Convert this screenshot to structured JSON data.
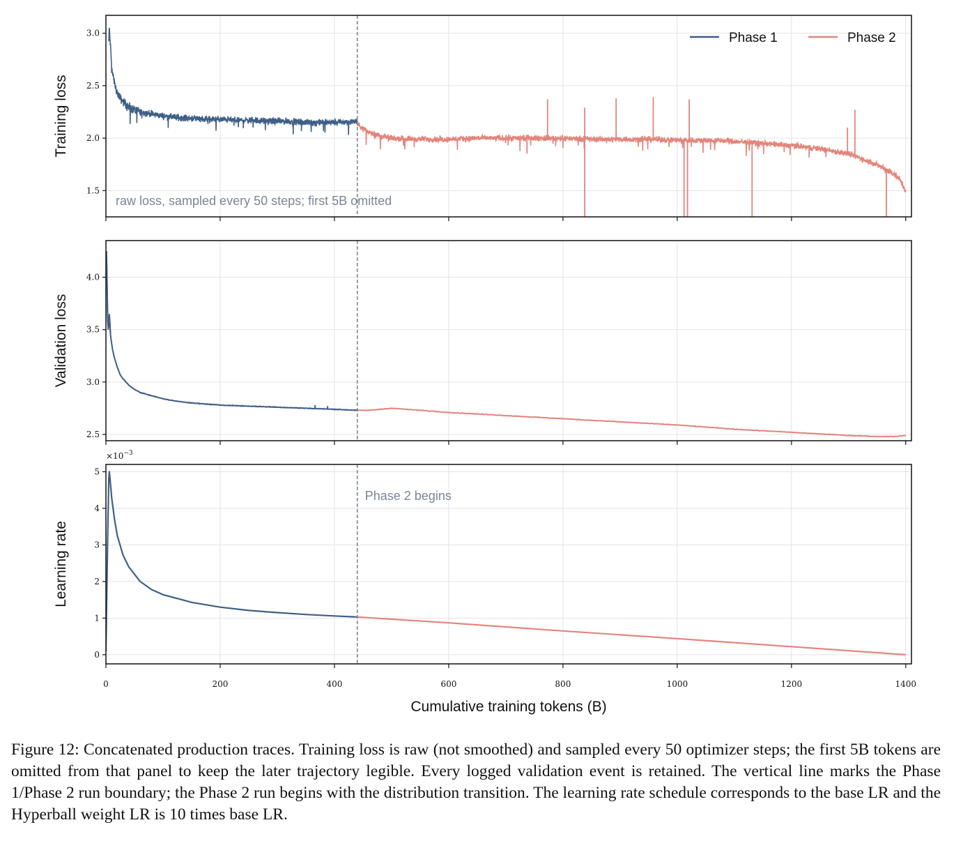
{
  "caption": "Figure 12: Concatenated production traces. Training loss is raw (not smoothed) and sampled every 50 optimizer steps; the first 5B tokens are omitted from that panel to keep the later trajectory legible. Every logged validation event is retained. The vertical line marks the Phase 1/Phase 2 run boundary; the Phase 2 run begins with the distribution transition. The learning rate schedule corresponds to the base LR and the Hyperball weight LR is 10 times base LR.",
  "colors": {
    "phase1": "#3f5f86",
    "phase2": "#e2857c",
    "boundary": "#7b8596",
    "grid": "#e3e3e3",
    "annotation": "#7b8596"
  },
  "chart_data": [
    {
      "type": "line",
      "panel": "training-loss",
      "ylabel": "Training loss",
      "xlim": [
        0,
        1410
      ],
      "ylim": [
        1.25,
        3.17
      ],
      "yticks": [
        1.5,
        2.0,
        2.5,
        3.0
      ],
      "ytick_labels": [
        "1.5",
        "2.0",
        "2.5",
        "3.0"
      ],
      "grid": true,
      "legend_position": "top-right",
      "annotation": "raw loss, sampled every 50 steps; first 5B omitted",
      "series": [
        {
          "name": "Phase 1",
          "x": [
            5,
            6,
            7,
            8,
            9,
            10,
            12,
            14,
            16,
            18,
            20,
            25,
            30,
            35,
            40,
            50,
            60,
            70,
            80,
            100,
            120,
            140,
            160,
            180,
            200,
            230,
            260,
            290,
            320,
            350,
            380,
            410,
            440
          ],
          "y": [
            2.92,
            3.05,
            2.95,
            2.88,
            2.78,
            2.68,
            2.6,
            2.55,
            2.5,
            2.46,
            2.43,
            2.38,
            2.35,
            2.32,
            2.29,
            2.27,
            2.25,
            2.24,
            2.23,
            2.21,
            2.2,
            2.19,
            2.19,
            2.18,
            2.18,
            2.17,
            2.17,
            2.16,
            2.16,
            2.15,
            2.15,
            2.15,
            2.16
          ]
        },
        {
          "name": "Phase 2",
          "x": [
            440,
            450,
            460,
            480,
            500,
            550,
            600,
            650,
            700,
            750,
            800,
            850,
            900,
            950,
            1000,
            1050,
            1100,
            1150,
            1200,
            1250,
            1300,
            1320,
            1340,
            1360,
            1380,
            1390,
            1400
          ],
          "y": [
            2.13,
            2.09,
            2.06,
            2.02,
            2.0,
            1.99,
            1.99,
            2.0,
            2.0,
            2.0,
            2.0,
            1.99,
            1.99,
            1.99,
            1.98,
            1.98,
            1.97,
            1.95,
            1.93,
            1.9,
            1.85,
            1.81,
            1.77,
            1.72,
            1.66,
            1.6,
            1.5
          ]
        }
      ],
      "spikes": [
        {
          "x": 773,
          "y": 2.37
        },
        {
          "x": 838,
          "y": 2.29
        },
        {
          "x": 893,
          "y": 2.38
        },
        {
          "x": 958,
          "y": 2.39
        },
        {
          "x": 1021,
          "y": 2.37
        },
        {
          "x": 1298,
          "y": 2.1
        },
        {
          "x": 1311,
          "y": 2.27
        }
      ],
      "dips": [
        {
          "x": 737,
          "y": 1.86
        },
        {
          "x": 838,
          "y": 1.2
        },
        {
          "x": 1012,
          "y": 1.2
        },
        {
          "x": 1018,
          "y": 1.2
        },
        {
          "x": 1131,
          "y": 1.2
        },
        {
          "x": 1366,
          "y": 1.2
        }
      ]
    },
    {
      "type": "line",
      "panel": "validation-loss",
      "ylabel": "Validation loss",
      "xlim": [
        0,
        1410
      ],
      "ylim": [
        2.44,
        4.35
      ],
      "yticks": [
        2.5,
        3.0,
        3.5,
        4.0
      ],
      "ytick_labels": [
        "2.5",
        "3.0",
        "3.5",
        "4.0"
      ],
      "grid": true,
      "series": [
        {
          "name": "Phase 1",
          "x": [
            0,
            1,
            2,
            3,
            4,
            5,
            6,
            7,
            8,
            10,
            12,
            15,
            20,
            25,
            30,
            40,
            50,
            60,
            80,
            100,
            120,
            150,
            200,
            250,
            300,
            350,
            400,
            440
          ],
          "y": [
            4.05,
            4.25,
            3.95,
            3.6,
            3.5,
            3.55,
            3.65,
            3.55,
            3.45,
            3.37,
            3.3,
            3.23,
            3.14,
            3.07,
            3.03,
            2.97,
            2.93,
            2.9,
            2.87,
            2.84,
            2.82,
            2.8,
            2.78,
            2.77,
            2.76,
            2.75,
            2.74,
            2.73
          ]
        },
        {
          "name": "Phase 2",
          "x": [
            440,
            460,
            480,
            500,
            550,
            600,
            700,
            800,
            900,
            1000,
            1100,
            1200,
            1300,
            1350,
            1380,
            1400
          ],
          "y": [
            2.73,
            2.73,
            2.74,
            2.75,
            2.73,
            2.71,
            2.68,
            2.65,
            2.62,
            2.59,
            2.55,
            2.52,
            2.49,
            2.48,
            2.48,
            2.49
          ]
        }
      ],
      "bumps": [
        {
          "x": 366,
          "y": 2.78
        },
        {
          "x": 388,
          "y": 2.77
        }
      ]
    },
    {
      "type": "line",
      "panel": "learning-rate",
      "ylabel": "Learning rate",
      "xlabel": "Cumulative training tokens (B)",
      "xlim": [
        0,
        1410
      ],
      "ylim": [
        -0.25,
        5.2
      ],
      "scale_label": "×10",
      "scale_exponent": "−3",
      "yticks": [
        0,
        1,
        2,
        3,
        4,
        5
      ],
      "ytick_labels": [
        "0",
        "1",
        "2",
        "3",
        "4",
        "5"
      ],
      "xticks": [
        0,
        200,
        400,
        600,
        800,
        1000,
        1200,
        1400
      ],
      "xtick_labels": [
        "0",
        "200",
        "400",
        "600",
        "800",
        "1000",
        "1200",
        "1400"
      ],
      "grid": true,
      "annotation": "Phase 2 begins",
      "series": [
        {
          "name": "Phase 1",
          "x": [
            0,
            1.5,
            3,
            5,
            6,
            7,
            10,
            15,
            20,
            30,
            40,
            60,
            80,
            100,
            150,
            200,
            250,
            300,
            350,
            400,
            440
          ],
          "y": [
            0.1,
            1.6,
            3.2,
            4.8,
            5.0,
            4.85,
            4.3,
            3.7,
            3.25,
            2.72,
            2.4,
            2.0,
            1.78,
            1.64,
            1.43,
            1.3,
            1.21,
            1.15,
            1.1,
            1.06,
            1.03
          ]
        },
        {
          "name": "Phase 2",
          "x": [
            440,
            600,
            800,
            1000,
            1200,
            1400
          ],
          "y": [
            1.03,
            0.87,
            0.65,
            0.44,
            0.22,
            0.0
          ]
        }
      ]
    }
  ],
  "boundary_x": 440
}
